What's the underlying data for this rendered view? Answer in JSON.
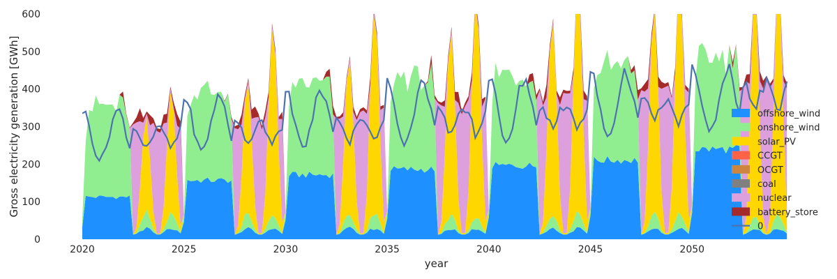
{
  "chart_data": {
    "type": "area",
    "title": "",
    "xlabel": "year",
    "ylabel": "Gross electricity generation [GWh]",
    "xlim": [
      2020,
      2054.83
    ],
    "ylim": [
      0,
      600
    ],
    "xticks": [
      2020,
      2025,
      2030,
      2035,
      2040,
      2045,
      2050
    ],
    "yticks": [
      0,
      100,
      200,
      300,
      400,
      500,
      600
    ],
    "grid": false,
    "legend_position": "right",
    "series": [
      {
        "name": "offshore_wind",
        "color": "#1e90ff",
        "kind": "stack"
      },
      {
        "name": "onshore_wind",
        "color": "#90ee90",
        "kind": "stack"
      },
      {
        "name": "solar_PV",
        "color": "#ffd700",
        "kind": "stack"
      },
      {
        "name": "CCGT",
        "color": "#ff6347",
        "kind": "stack"
      },
      {
        "name": "OCGT",
        "color": "#cd853f",
        "kind": "stack"
      },
      {
        "name": "coal",
        "color": "#808080",
        "kind": "stack"
      },
      {
        "name": "nuclear",
        "color": "#dda0dd",
        "kind": "stack"
      },
      {
        "name": "battery_store",
        "color": "#a52a2a",
        "kind": "stack"
      },
      {
        "name": "0",
        "color": "#4c72b0",
        "kind": "line"
      }
    ],
    "periods": [
      {
        "start": 2020.0,
        "end": 2022.5,
        "type": "wind",
        "offshore": 115,
        "total": 360,
        "line": 330
      },
      {
        "start": 2022.5,
        "end": 2025.0,
        "type": "solar",
        "solar_peaks": [
          250,
          325
        ],
        "total": 310,
        "line": 300
      },
      {
        "start": 2025.0,
        "end": 2027.5,
        "type": "wind",
        "offshore": 160,
        "total": 400,
        "line": 365
      },
      {
        "start": 2027.5,
        "end": 2030.0,
        "type": "solar",
        "solar_peaks": [
          350,
          505
        ],
        "total": 320,
        "line": 310
      },
      {
        "start": 2030.0,
        "end": 2032.5,
        "type": "wind",
        "offshore": 175,
        "total": 420,
        "line": 380
      },
      {
        "start": 2032.5,
        "end": 2035.0,
        "type": "solar",
        "solar_peaks": [
          415,
          545
        ],
        "total": 340,
        "line": 320
      },
      {
        "start": 2035.0,
        "end": 2037.5,
        "type": "wind",
        "offshore": 190,
        "total": 440,
        "line": 400
      },
      {
        "start": 2037.5,
        "end": 2040.0,
        "type": "solar",
        "solar_peaks": [
          490,
          580
        ],
        "total": 360,
        "line": 345
      },
      {
        "start": 2040.0,
        "end": 2042.5,
        "type": "wind",
        "offshore": 200,
        "total": 450,
        "line": 410
      },
      {
        "start": 2042.5,
        "end": 2045.0,
        "type": "solar",
        "solar_peaks": [
          520,
          610
        ],
        "total": 380,
        "line": 360
      },
      {
        "start": 2045.0,
        "end": 2047.5,
        "type": "wind",
        "offshore": 215,
        "total": 470,
        "line": 425
      },
      {
        "start": 2047.5,
        "end": 2050.0,
        "type": "solar",
        "solar_peaks": [
          540,
          610
        ],
        "total": 400,
        "line": 380
      },
      {
        "start": 2050.0,
        "end": 2052.5,
        "type": "wind",
        "offshore": 245,
        "total": 495,
        "line": 440
      },
      {
        "start": 2052.5,
        "end": 2054.83,
        "type": "solar",
        "solar_peaks": [
          585,
          610
        ],
        "total": 420,
        "line": 420
      }
    ]
  }
}
